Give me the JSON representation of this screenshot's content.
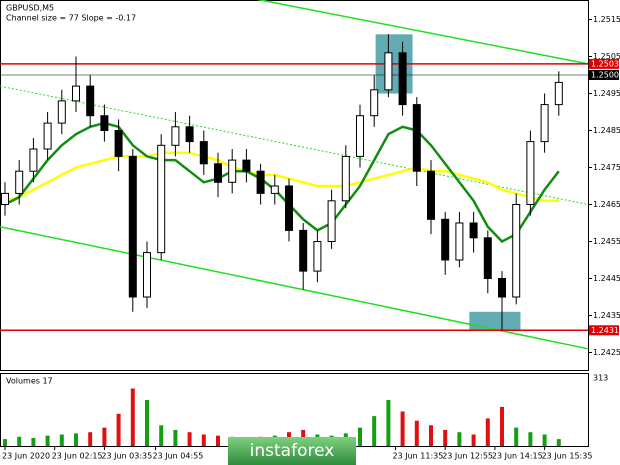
{
  "chart_data": {
    "type": "candlestick",
    "title": "GBPUSD,M5",
    "subtitle": "Channel size = 77 Slope = -0.17",
    "open": [
      1.2465,
      1.2468,
      1.2474,
      1.248,
      1.2487,
      1.2493,
      1.2497,
      1.2489,
      1.2485,
      1.2478,
      1.244,
      1.2452,
      1.2481,
      1.2486,
      1.2482,
      1.2476,
      1.2471,
      1.2477,
      1.2474,
      1.2468,
      1.247,
      1.2458,
      1.2447,
      1.2455,
      1.2466,
      1.2478,
      1.2489,
      1.2496,
      1.2506,
      1.2492,
      1.2474,
      1.2461,
      1.245,
      1.246,
      1.2456,
      1.2445,
      1.244,
      1.2465,
      1.2482,
      1.2492
    ],
    "high": [
      1.2471,
      1.2477,
      1.2483,
      1.249,
      1.2496,
      1.2505,
      1.25,
      1.2492,
      1.2488,
      1.248,
      1.2455,
      1.2484,
      1.249,
      1.2489,
      1.2485,
      1.2479,
      1.248,
      1.248,
      1.2476,
      1.2473,
      1.2472,
      1.246,
      1.2458,
      1.2469,
      1.2481,
      1.2492,
      1.25,
      1.2511,
      1.2509,
      1.2494,
      1.2477,
      1.2463,
      1.2463,
      1.2463,
      1.2458,
      1.2447,
      1.2468,
      1.2485,
      1.2495,
      1.2501
    ],
    "low": [
      1.2462,
      1.2465,
      1.2471,
      1.2477,
      1.2484,
      1.249,
      1.2486,
      1.2482,
      1.2474,
      1.2436,
      1.2437,
      1.245,
      1.2478,
      1.2479,
      1.2473,
      1.2467,
      1.2468,
      1.2471,
      1.2465,
      1.2465,
      1.2455,
      1.2442,
      1.2444,
      1.2453,
      1.2464,
      1.2475,
      1.2486,
      1.2494,
      1.2489,
      1.247,
      1.2457,
      1.2446,
      1.2448,
      1.2452,
      1.2441,
      1.2431,
      1.2438,
      1.2462,
      1.2479,
      1.2489
    ],
    "close": [
      1.2468,
      1.2474,
      1.248,
      1.2487,
      1.2493,
      1.2497,
      1.2489,
      1.2485,
      1.2478,
      1.244,
      1.2452,
      1.2481,
      1.2486,
      1.2482,
      1.2476,
      1.2471,
      1.2477,
      1.2474,
      1.2468,
      1.247,
      1.2458,
      1.2447,
      1.2455,
      1.2466,
      1.2478,
      1.2489,
      1.2496,
      1.2506,
      1.2492,
      1.2474,
      1.2461,
      1.245,
      1.246,
      1.2456,
      1.2445,
      1.244,
      1.2465,
      1.2482,
      1.2492,
      1.2498
    ],
    "moving_averages": [
      {
        "color": "#ffff00",
        "values": [
          1.2466,
          1.2467,
          1.2469,
          1.2471,
          1.2473,
          1.2475,
          1.2476,
          1.2477,
          1.2478,
          1.2478,
          1.2478,
          1.2479,
          1.2479,
          1.2479,
          1.2478,
          1.2477,
          1.2475,
          1.2474,
          1.2473,
          1.2473,
          1.2472,
          1.2471,
          1.247,
          1.247,
          1.247,
          1.2471,
          1.2472,
          1.2473,
          1.2474,
          1.2475,
          1.2474,
          1.2474,
          1.2473,
          1.2472,
          1.2471,
          1.2469,
          1.2468,
          1.2467,
          1.2466,
          1.2466
        ]
      },
      {
        "color": "#128c12",
        "values": [
          1.2465,
          1.2467,
          1.2472,
          1.2477,
          1.2481,
          1.2484,
          1.2486,
          1.2487,
          1.2486,
          1.2481,
          1.2478,
          1.2477,
          1.2477,
          1.2474,
          1.2471,
          1.2472,
          1.2474,
          1.2474,
          1.2472,
          1.2469,
          1.2465,
          1.2461,
          1.2458,
          1.246,
          1.2465,
          1.247,
          1.2477,
          1.2484,
          1.2486,
          1.2485,
          1.2481,
          1.2476,
          1.2471,
          1.2466,
          1.2459,
          1.2455,
          1.2457,
          1.2463,
          1.2469,
          1.2474
        ]
      }
    ],
    "channel": {
      "color": "#22dd22",
      "upper": [
        1.2534,
        1.2503
      ],
      "middle": [
        1.2497,
        1.2465
      ],
      "lower": [
        1.2459,
        1.2426
      ]
    },
    "levels": [
      {
        "value": 1.2503,
        "label": "1.2503",
        "color": "#e00000"
      },
      {
        "value": 1.2431,
        "label": "1.2431",
        "color": "#e00000"
      },
      {
        "value": 1.25,
        "label": "1.2500",
        "color": "#000000"
      }
    ],
    "highlights": [
      {
        "x": [
          26.1,
          28.7
        ],
        "y": [
          1.2495,
          1.2511
        ]
      },
      {
        "x": [
          32.7,
          36.3
        ],
        "y": [
          1.2431,
          1.2436
        ]
      }
    ],
    "ylim": [
      1.242,
      1.252
    ],
    "yticks": [
      1.2515,
      1.2505,
      1.2495,
      1.2485,
      1.2475,
      1.2465,
      1.2455,
      1.2445,
      1.2435,
      1.2425
    ],
    "xticks": [
      {
        "value": 0,
        "label": "23 Jun 2020"
      },
      {
        "value": 3.5,
        "label": "23 Jun 02:15"
      },
      {
        "value": 7,
        "label": "23 Jun 03:35"
      },
      {
        "value": 10.6,
        "label": "23 Jun 04:55"
      },
      {
        "value": 27.5,
        "label": "23 Jun 11:35"
      },
      {
        "value": 31,
        "label": "23 Jun 12:55"
      },
      {
        "value": 34.5,
        "label": "23 Jun 14:15"
      },
      {
        "value": 38,
        "label": "23 Jun 15:35"
      }
    ],
    "volume_title": "Volumes 17",
    "volumes": [
      30,
      40,
      35,
      45,
      50,
      55,
      60,
      80,
      140,
      250,
      200,
      90,
      70,
      60,
      50,
      45,
      40,
      35,
      40,
      45,
      60,
      70,
      50,
      45,
      55,
      80,
      130,
      200,
      150,
      110,
      90,
      70,
      60,
      50,
      120,
      170,
      80,
      60,
      50,
      30
    ],
    "volume_ylim": [
      0,
      313
    ],
    "volume_yticks": [
      313
    ],
    "watermark": "instaforex"
  }
}
